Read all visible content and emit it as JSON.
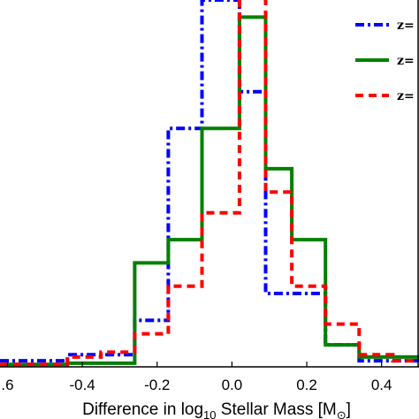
{
  "chart_data": {
    "type": "step-histogram",
    "title": "",
    "xlabel": "Difference in log",
    "xlabel_sub": "10",
    "xlabel_rest": " Stellar Mass [M",
    "xlabel_sym": "⊙",
    "xlabel_end": "]",
    "ylabel": "",
    "xlim": [
      -0.62,
      0.5
    ],
    "ylim": [
      0,
      0.3
    ],
    "xticks": [
      -0.6,
      -0.4,
      -0.2,
      0.0,
      0.2,
      0.4
    ],
    "xtick_labels": [
      ".6",
      "-0.4",
      "-0.2",
      "0.0",
      "0.2",
      "0.4"
    ],
    "legend_position": "top-right",
    "series": [
      {
        "name": "z=",
        "color": "#0000ff",
        "style": "dashdot",
        "edges": [
          -0.62,
          -0.44,
          -0.35,
          -0.26,
          -0.17,
          -0.08,
          0.02,
          0.09,
          0.16,
          0.25,
          0.34,
          0.43,
          0.5
        ],
        "values": [
          0.005,
          0.01,
          0.01,
          0.038,
          0.195,
          0.3,
          0.225,
          0.06,
          0.06,
          0.018,
          0.005,
          0.005
        ]
      },
      {
        "name": "z=",
        "color": "#008000",
        "style": "solid",
        "edges": [
          -0.62,
          -0.44,
          -0.35,
          -0.26,
          -0.17,
          -0.08,
          0.02,
          0.09,
          0.16,
          0.25,
          0.34,
          0.43,
          0.5
        ],
        "values": [
          0.002,
          0.003,
          0.003,
          0.085,
          0.104,
          0.195,
          0.286,
          0.162,
          0.104,
          0.018,
          0.008,
          0.008
        ]
      },
      {
        "name": "z=",
        "color": "#ff0000",
        "style": "dashed",
        "edges": [
          -0.62,
          -0.44,
          -0.35,
          -0.26,
          -0.17,
          -0.08,
          0.02,
          0.09,
          0.16,
          0.25,
          0.34,
          0.43,
          0.5
        ],
        "values": [
          0.002,
          0.008,
          0.012,
          0.027,
          0.066,
          0.126,
          0.32,
          0.143,
          0.066,
          0.035,
          0.01,
          0.005
        ]
      }
    ]
  }
}
